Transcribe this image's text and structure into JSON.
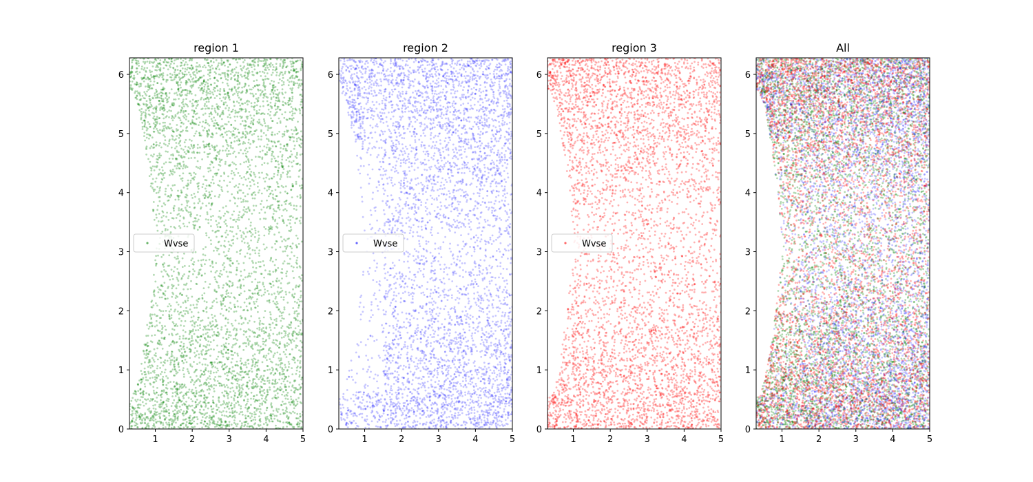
{
  "figure": {
    "background": "#ffffff"
  },
  "chart_data": [
    {
      "type": "scatter",
      "title": "region 1",
      "xlabel": "",
      "ylabel": "",
      "xlim": [
        0.3,
        5
      ],
      "ylim": [
        0,
        6.28
      ],
      "xticks": [
        "1",
        "2",
        "3",
        "4",
        "5"
      ],
      "yticks": [
        "0",
        "1",
        "2",
        "3",
        "4",
        "5",
        "6"
      ],
      "grid": false,
      "legend": {
        "placement": "center-left",
        "entries": [
          "Wvse"
        ]
      },
      "series": [
        {
          "name": "Wvse",
          "color": "#008000",
          "profile": "bimodal",
          "alpha": 0.3
        }
      ]
    },
    {
      "type": "scatter",
      "title": "region 2",
      "xlabel": "",
      "ylabel": "",
      "xlim": [
        0.3,
        5
      ],
      "ylim": [
        0,
        6.28
      ],
      "xticks": [
        "1",
        "2",
        "3",
        "4",
        "5"
      ],
      "yticks": [
        "0",
        "1",
        "2",
        "3",
        "4",
        "5",
        "6"
      ],
      "grid": false,
      "legend": {
        "placement": "center-left",
        "entries": [
          "Wvse"
        ]
      },
      "series": [
        {
          "name": "Wvse",
          "color": "#0000ff",
          "profile": "diffuse",
          "alpha": 0.22
        }
      ]
    },
    {
      "type": "scatter",
      "title": "region 3",
      "xlabel": "",
      "ylabel": "",
      "xlim": [
        0.3,
        5
      ],
      "ylim": [
        0,
        6.28
      ],
      "xticks": [
        "1",
        "2",
        "3",
        "4",
        "5"
      ],
      "yticks": [
        "0",
        "1",
        "2",
        "3",
        "4",
        "5",
        "6"
      ],
      "grid": false,
      "legend": {
        "placement": "center-left",
        "entries": [
          "Wvse"
        ]
      },
      "series": [
        {
          "name": "Wvse",
          "color": "#ff0000",
          "profile": "bimodal",
          "alpha": 0.3
        }
      ]
    },
    {
      "type": "scatter",
      "title": "All",
      "xlabel": "",
      "ylabel": "",
      "xlim": [
        0.3,
        5
      ],
      "ylim": [
        0,
        6.28
      ],
      "xticks": [
        "1",
        "2",
        "3",
        "4",
        "5"
      ],
      "yticks": [
        "0",
        "1",
        "2",
        "3",
        "4",
        "5",
        "6"
      ],
      "grid": false,
      "legend": null,
      "series": [
        {
          "name": "",
          "color": "#008000",
          "profile": "bimodal",
          "alpha": 0.3
        },
        {
          "name": "",
          "color": "#0000ff",
          "profile": "diffuse",
          "alpha": 0.22
        },
        {
          "name": "",
          "color": "#ff0000",
          "profile": "bimodal",
          "alpha": 0.3
        }
      ]
    }
  ]
}
